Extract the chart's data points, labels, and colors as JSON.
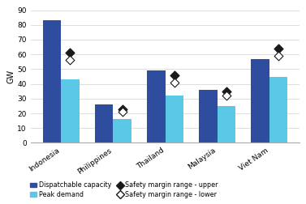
{
  "categories": [
    "Indonesia",
    "Philippines",
    "Thailand",
    "Malaysia",
    "Viet Nam"
  ],
  "dispatchable_capacity": [
    83,
    26,
    49,
    36,
    57
  ],
  "peak_demand": [
    43,
    16,
    32,
    25,
    45
  ],
  "safety_upper": [
    61,
    23,
    46,
    35,
    64
  ],
  "safety_lower": [
    56,
    21,
    41,
    32,
    59
  ],
  "bar_color_dispatch": "#2E4D9F",
  "bar_color_peak": "#5BC8E8",
  "marker_upper_color": "#1a1a1a",
  "marker_lower_color": "#ffffff",
  "ylabel": "GW",
  "ylim": [
    0,
    90
  ],
  "yticks": [
    0,
    10,
    20,
    30,
    40,
    50,
    60,
    70,
    80,
    90
  ],
  "legend_dispatch": "Dispatchable capacity",
  "legend_peak": "Peak demand",
  "legend_upper": "Safety margin range - upper",
  "legend_lower": "Safety margin range - lower",
  "bar_width": 0.35
}
